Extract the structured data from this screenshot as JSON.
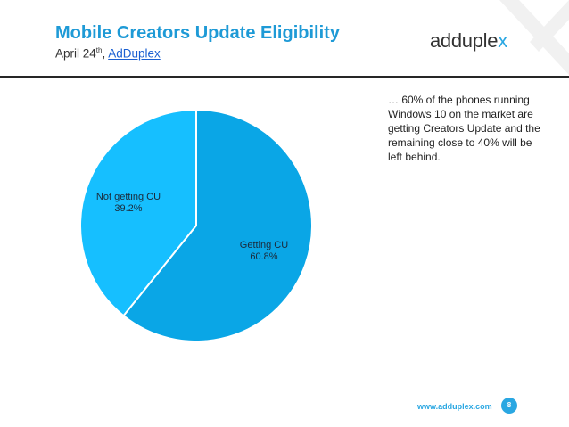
{
  "header": {
    "title": "Mobile Creators Update Eligibility",
    "subtitle_date": "April 24",
    "subtitle_sup": "th",
    "subtitle_sep": ", ",
    "subtitle_link": "AdDuplex"
  },
  "logo": {
    "part1": "ad",
    "part2": "duple",
    "part3": "x"
  },
  "note": "… 60% of the phones running Windows 10 on the market are getting Creators Update and the remaining close to 40% will be left behind.",
  "footer": {
    "url": "www.adduplex.com",
    "page": "8"
  },
  "colors": {
    "accent": "#1e9ad6",
    "slice_getting": "#0aa6e6",
    "slice_not": "#16bfff"
  },
  "chart_data": {
    "type": "pie",
    "title": "",
    "slices": [
      {
        "label": "Getting CU",
        "value": 60.8,
        "value_label": "60.8%",
        "color": "#0aa6e6"
      },
      {
        "label": "Not getting CU",
        "value": 39.2,
        "value_label": "39.2%",
        "color": "#16bfff"
      }
    ],
    "start_angle_deg": 0,
    "direction": "clockwise",
    "legend": "none"
  }
}
